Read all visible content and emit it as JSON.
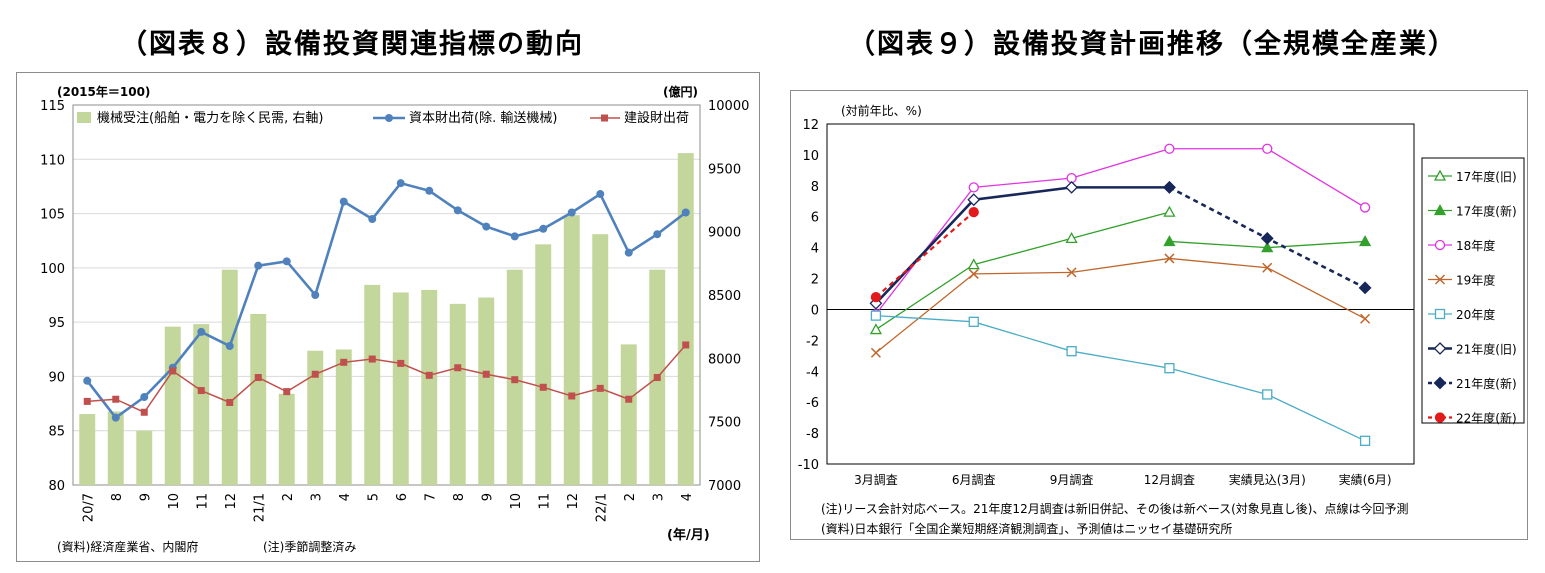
{
  "chart_data": [
    {
      "type": "bar+line",
      "title": "（図表８）設備投資関連指標の動向",
      "left_axis_note": "(2015年＝100)",
      "right_axis_note": "(億円)",
      "x_unit": "(年/月)",
      "source": "(資料)経済産業省、内閣府",
      "note": "(注)季節調整済み",
      "categories": [
        "20/7",
        "8",
        "9",
        "10",
        "11",
        "12",
        "21/1",
        "2",
        "3",
        "4",
        "5",
        "6",
        "7",
        "8",
        "9",
        "10",
        "11",
        "12",
        "22/1",
        "2",
        "3",
        "4"
      ],
      "left_ylim": [
        80,
        115
      ],
      "left_yticks": [
        "80",
        "85",
        "90",
        "95",
        "100",
        "105",
        "110",
        "115"
      ],
      "right_ylim": [
        7000,
        10000
      ],
      "right_yticks": [
        "7000",
        "7500",
        "8000",
        "8500",
        "9000",
        "9500",
        "10000"
      ],
      "series": [
        {
          "name": "機械受注(船舶・電力を除く民需, 右軸)",
          "type": "bar",
          "axis": "right",
          "color": "#c3d69b",
          "values": [
            7560,
            7580,
            7430,
            8250,
            8270,
            8700,
            8350,
            7720,
            8060,
            8070,
            8580,
            8520,
            8540,
            8430,
            8480,
            8700,
            8900,
            9130,
            8980,
            8110,
            8700,
            9620
          ]
        },
        {
          "name": "資本財出荷(除. 輸送機械)",
          "type": "line",
          "axis": "left",
          "color": "#4f81bd",
          "marker": "circle",
          "values": [
            89.6,
            86.2,
            88.1,
            90.8,
            94.1,
            92.8,
            100.2,
            100.6,
            97.5,
            106.1,
            104.5,
            107.8,
            107.1,
            105.3,
            103.8,
            102.9,
            103.6,
            105.1,
            106.8,
            101.4,
            103.1,
            105.1
          ]
        },
        {
          "name": "建設財出荷",
          "type": "line",
          "axis": "left",
          "color": "#c0504d",
          "marker": "square",
          "values": [
            87.7,
            87.9,
            86.7,
            90.5,
            88.7,
            87.6,
            89.9,
            88.6,
            90.2,
            91.3,
            91.6,
            91.2,
            90.1,
            90.8,
            90.2,
            89.7,
            89.0,
            88.2,
            88.9,
            87.9,
            89.9,
            92.9
          ]
        }
      ]
    },
    {
      "type": "line",
      "title": "（図表９）設備投資計画推移（全規模全産業）",
      "ylabel": "(対前年比、%)",
      "ylim": [
        -10,
        12
      ],
      "yticks": [
        "12",
        "10",
        "8",
        "6",
        "4",
        "2",
        "0",
        "-2",
        "-4",
        "-6",
        "-8",
        "-10"
      ],
      "categories": [
        "3月調査",
        "6月調査",
        "9月調査",
        "12月調査",
        "実績見込(3月)",
        "実績(6月)"
      ],
      "note": "(注)リース会計対応ベース。21年度12月調査は新旧併記、その後は新ベース(対象見直し後)、点線は今回予測",
      "source": "(資料)日本銀行「全国企業短期経済観測調査」、予測値はニッセイ基礎研究所",
      "series": [
        {
          "name": "17年度(旧)",
          "color": "#33a02c",
          "marker": "triangle-open",
          "dashed": false,
          "values": [
            -1.3,
            2.9,
            4.6,
            6.3,
            null,
            null
          ]
        },
        {
          "name": "17年度(新)",
          "color": "#33a02c",
          "marker": "triangle-filled",
          "dashed": false,
          "values": [
            null,
            null,
            null,
            4.4,
            4.0,
            4.4
          ]
        },
        {
          "name": "18年度",
          "color": "#e033e0",
          "marker": "circle-open",
          "dashed": false,
          "values": [
            -0.3,
            7.9,
            8.5,
            10.4,
            10.4,
            6.6
          ]
        },
        {
          "name": "19年度",
          "color": "#c0662b",
          "marker": "x",
          "dashed": false,
          "values": [
            -2.8,
            2.3,
            2.4,
            3.3,
            2.7,
            -0.6
          ]
        },
        {
          "name": "20年度",
          "color": "#4bacc6",
          "marker": "square-open",
          "dashed": false,
          "values": [
            -0.4,
            -0.8,
            -2.7,
            -3.8,
            -5.5,
            -8.5
          ]
        },
        {
          "name": "21年度(旧)",
          "color": "#17275a",
          "marker": "diamond-open",
          "dashed": false,
          "values": [
            0.4,
            7.1,
            7.9,
            7.9,
            null,
            null
          ]
        },
        {
          "name": "21年度(新)",
          "color": "#17275a",
          "marker": "diamond-filled",
          "dashed": true,
          "values": [
            null,
            null,
            null,
            7.9,
            4.6,
            1.4
          ]
        },
        {
          "name": "22年度(新)",
          "color": "#e31a1c",
          "marker": "circle-filled",
          "dashed": true,
          "values": [
            0.8,
            6.3,
            null,
            null,
            null,
            null
          ]
        }
      ]
    }
  ]
}
